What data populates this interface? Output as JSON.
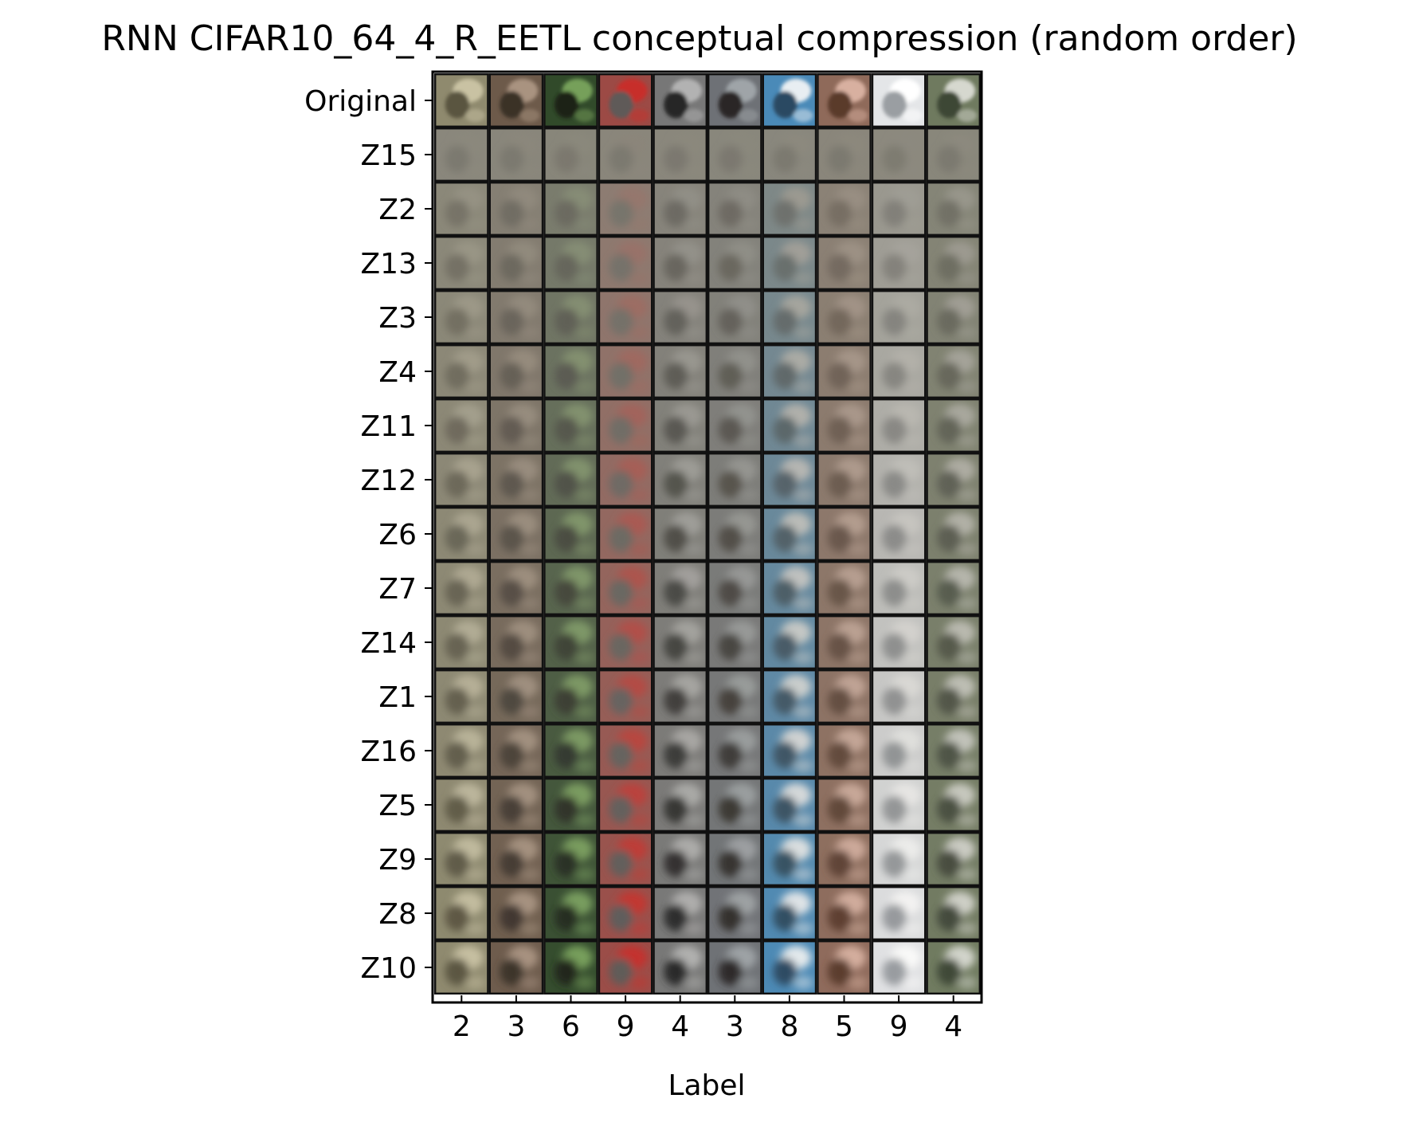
{
  "chart_data": {
    "type": "image_grid",
    "title": "RNN CIFAR10_64_4_R_EETL conceptual compression (random order)",
    "xlabel": "Label",
    "ylabel": "",
    "row_labels": [
      "Original",
      "Z15",
      "Z2",
      "Z13",
      "Z3",
      "Z4",
      "Z11",
      "Z12",
      "Z6",
      "Z7",
      "Z14",
      "Z1",
      "Z16",
      "Z5",
      "Z9",
      "Z8",
      "Z10"
    ],
    "column_labels": [
      "2",
      "3",
      "6",
      "9",
      "4",
      "3",
      "8",
      "5",
      "9",
      "4"
    ],
    "grid": false,
    "original_column_colors": [
      [
        "#8f8a6e",
        "#c9c2a3",
        "#5a5540"
      ],
      [
        "#6d5a4a",
        "#a99380",
        "#3b3028"
      ],
      [
        "#314a2a",
        "#76a05a",
        "#1c2418"
      ],
      [
        "#9c4a45",
        "#c72f2a",
        "#5e5a58"
      ],
      [
        "#777777",
        "#b2b2b2",
        "#262626"
      ],
      [
        "#6e7176",
        "#9fa4a8",
        "#2b2826"
      ],
      [
        "#4a8ab8",
        "#e8eef2",
        "#2a4a62"
      ],
      [
        "#8f6a5a",
        "#d8b0a0",
        "#5a3a2c"
      ],
      [
        "#e4e6e8",
        "#ffffff",
        "#9a9ea2"
      ],
      [
        "#6f7a5f",
        "#d6d8cf",
        "#3e4636"
      ]
    ]
  }
}
